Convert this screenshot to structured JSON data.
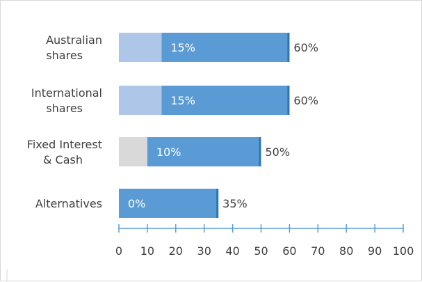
{
  "chart_data": {
    "type": "bar",
    "orientation": "horizontal",
    "stacked": true,
    "categories": [
      "Australian\nshares",
      "International\nshares",
      "Fixed Interest\n& Cash",
      "Alternatives"
    ],
    "series": [
      {
        "values": [
          15,
          15,
          10,
          0
        ],
        "colors": [
          "#aec7e8",
          "#aec7e8",
          "#d9d9d9",
          "#aec7e8"
        ],
        "labels": [
          "15%",
          "15%",
          "10%",
          "0%"
        ]
      },
      {
        "values": [
          45,
          45,
          40,
          35
        ],
        "colors": [
          "#5b9bd5",
          "#5b9bd5",
          "#5b9bd5",
          "#5b9bd5"
        ]
      }
    ],
    "total_labels": [
      "60%",
      "60%",
      "50%",
      "35%"
    ],
    "end_marker_color": "#2e75b6",
    "xlim": [
      0,
      100
    ],
    "xticks": [
      0,
      10,
      20,
      30,
      40,
      50,
      60,
      70,
      80,
      90,
      100
    ],
    "axis_color": "#5b9bd5",
    "grid": false,
    "legend": "none"
  }
}
